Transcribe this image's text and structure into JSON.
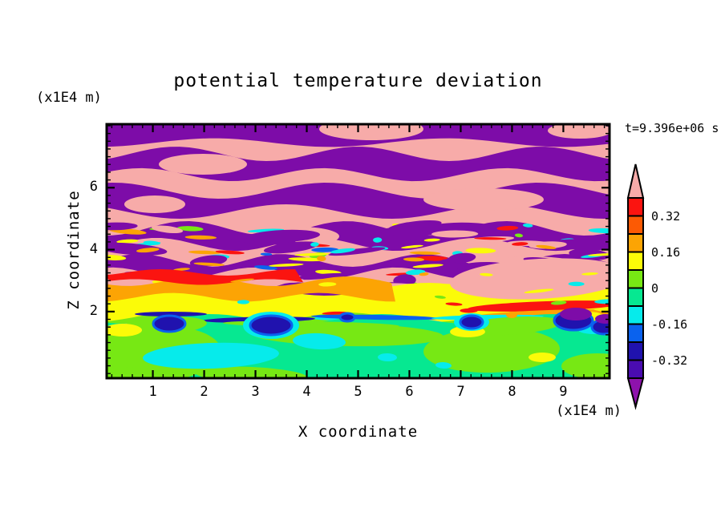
{
  "title": "potential temperature deviation",
  "annotations": {
    "timestamp": "t=9.396e+06 s"
  },
  "axes": {
    "x": {
      "label": "X coordinate",
      "unit": "(x1E4 m)",
      "range": [
        0.1,
        9.9
      ],
      "major_ticks": [
        1,
        2,
        3,
        4,
        5,
        6,
        7,
        8,
        9
      ],
      "minor_tick_step": 0.2
    },
    "y": {
      "label": "Z coordinate",
      "unit": "(x1E4 m)",
      "range": [
        -0.15,
        8.05
      ],
      "major_ticks": [
        2,
        4,
        6
      ],
      "minor_tick_step": 0.25
    }
  },
  "colorbar": {
    "tick_labels": [
      "0.32",
      "0.16",
      "0",
      "-0.16",
      "-0.32"
    ],
    "levels": [
      0.4,
      0.32,
      0.24,
      0.16,
      0.08,
      0,
      -0.08,
      -0.16,
      -0.24,
      -0.32,
      -0.4
    ],
    "segment_colors_top_to_bottom": [
      "#FB1410",
      "#FC5A04",
      "#FCA404",
      "#FBFB08",
      "#77E814",
      "#06E891",
      "#06EBEB",
      "#0A62EE",
      "#2012AE",
      "#4A0CB0"
    ],
    "above_range_color": "#F7ABA9",
    "below_range_color": "#8E12AC"
  },
  "palette": {
    "pink": "#F7ABA9",
    "purple": "#7D0CA8",
    "red": "#FB1410",
    "orange_red": "#FC5A04",
    "orange": "#FCA404",
    "yellow": "#FBFB08",
    "chartreuse": "#77E814",
    "spring_green": "#06E891",
    "cyan": "#06EBEB",
    "blue": "#0A62EE",
    "navy": "#2012AE",
    "indigo": "#4A0CB0",
    "frame": "#000000",
    "background": "#ffffff"
  },
  "chart_data": {
    "type": "heatmap",
    "subtype": "filled_contour",
    "title": "potential temperature deviation",
    "xlabel": "X coordinate (x1E4 m)",
    "ylabel": "Z coordinate (x1E4 m)",
    "x_range": [
      0.1,
      9.9
    ],
    "y_range": [
      0,
      8.1
    ],
    "x_ticks": [
      1,
      2,
      3,
      4,
      5,
      6,
      7,
      8,
      9
    ],
    "y_ticks": [
      2,
      4,
      6
    ],
    "time_annotation": "t=9.396e+06 s",
    "contour_levels": [
      -0.4,
      -0.32,
      -0.24,
      -0.16,
      -0.08,
      0,
      0.08,
      0.16,
      0.24,
      0.32,
      0.4
    ],
    "colorbar_labeled_levels": [
      0.32,
      0.16,
      0,
      -0.16,
      -0.32
    ],
    "legend_position": "right",
    "grid": false,
    "regions": [
      {
        "z_range_x1E4m": [
          4.2,
          8.1
        ],
        "pattern": "large-amplitude horizontal wave bands alternating between deviation > +0.40 (pink) and < -0.40 (purple), with thin rainbow fringes of intermediate levels along band edges"
      },
      {
        "z_range_x1E4m": [
          2.2,
          4.2
        ],
        "pattern": "fine-scale turbulent mixture of all contour levels; coherent +0.16..+0.40 red/orange/yellow layer near z~3 on the left and a pink/red layer near x~6-9.5, z~3.5"
      },
      {
        "z_range_x1E4m": [
          0,
          2.2
        ],
        "pattern": "weak deviations -0.16..+0.16 (spring green / chartreuse with cyan pockets); isolated pockets below -0.24 (navy/purple blobs) along z~2"
      }
    ]
  }
}
